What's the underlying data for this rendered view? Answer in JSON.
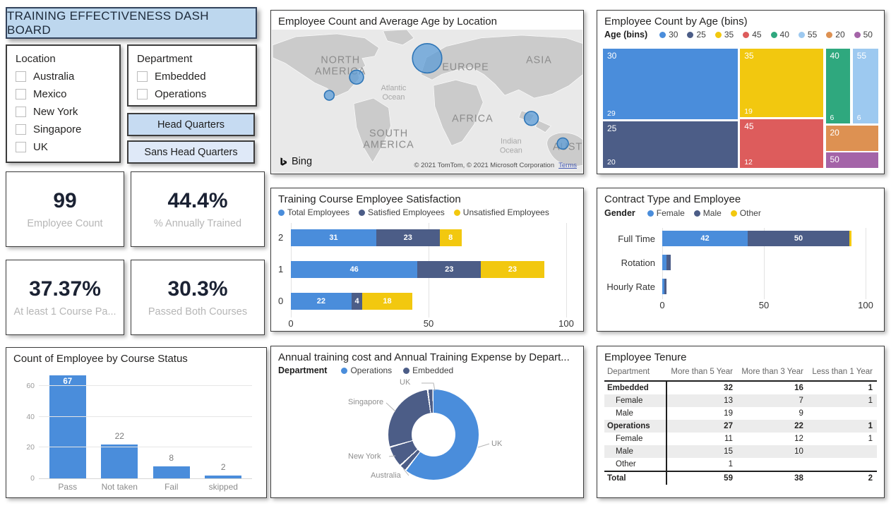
{
  "header": {
    "title": "TRAINING EFFECTIVENESS DASH BOARD"
  },
  "colors": {
    "blue": "#4A8DDB",
    "navy": "#4C5D87",
    "yellow": "#F2C80F",
    "red": "#DD5C5C",
    "green": "#2FA87E",
    "light_blue": "#9DC9F0",
    "orange": "#DD9152",
    "purple": "#A464A8",
    "header_bg": "#BDD7EE"
  },
  "filters": {
    "location": {
      "label": "Location",
      "options": [
        "Australia",
        "Mexico",
        "New York",
        "Singapore",
        "UK"
      ]
    },
    "department": {
      "label": "Department",
      "options": [
        "Embedded",
        "Operations"
      ]
    },
    "buttons": [
      {
        "label": "Head Quarters"
      },
      {
        "label": "Sans Head Quarters"
      }
    ]
  },
  "kpis": [
    {
      "value": "99",
      "label": "Employee Count"
    },
    {
      "value": "44.4%",
      "label": "% Annually Trained"
    },
    {
      "value": "37.37%",
      "label": "At least 1 Course Pa..."
    },
    {
      "value": "30.3%",
      "label": "Passed Both Courses"
    }
  ],
  "chart_data": [
    {
      "type": "map",
      "title": "Employee Count and Average Age by Location",
      "region_labels": [
        {
          "lines": [
            "NORTH",
            "AMERICA"
          ],
          "x": 97,
          "y": 48,
          "cls": "land"
        },
        {
          "lines": [
            "EUROPE"
          ],
          "x": 276,
          "y": 58,
          "cls": "land"
        },
        {
          "lines": [
            "ASIA"
          ],
          "x": 381,
          "y": 48,
          "cls": "land"
        },
        {
          "lines": [
            "Atlantic",
            "Ocean"
          ],
          "x": 173,
          "y": 87,
          "cls": "ocean"
        },
        {
          "lines": [
            "AFRICA"
          ],
          "x": 286,
          "y": 132,
          "cls": "land"
        },
        {
          "lines": [
            "SOUTH",
            "AMERICA"
          ],
          "x": 166,
          "y": 153,
          "cls": "land"
        },
        {
          "lines": [
            "Indian",
            "Ocean"
          ],
          "x": 341,
          "y": 163,
          "cls": "ocean"
        },
        {
          "lines": [
            "AUST"
          ],
          "x": 422,
          "y": 172,
          "cls": "land"
        }
      ],
      "bubbles": [
        {
          "x": 221,
          "y": 41,
          "r": 21
        },
        {
          "x": 120,
          "y": 68,
          "r": 10
        },
        {
          "x": 81,
          "y": 94,
          "r": 7
        },
        {
          "x": 370,
          "y": 127,
          "r": 10
        },
        {
          "x": 415,
          "y": 163,
          "r": 8
        }
      ],
      "logo": "Bing",
      "attribution": "© 2021 TomTom, © 2021 Microsoft Corporation",
      "terms": "Terms"
    },
    {
      "type": "treemap",
      "title": "Employee Count by Age (bins)",
      "legend_title": "Age (bins)",
      "items": [
        {
          "bin": "30",
          "value": 29,
          "color": "#4A8DDB"
        },
        {
          "bin": "25",
          "value": 20,
          "color": "#4C5D87"
        },
        {
          "bin": "35",
          "value": 19,
          "color": "#F2C80F"
        },
        {
          "bin": "45",
          "value": 12,
          "color": "#DD5C5C"
        },
        {
          "bin": "40",
          "value": 6,
          "color": "#2FA87E"
        },
        {
          "bin": "55",
          "value": 6,
          "color": "#9DC9F0"
        },
        {
          "bin": "20",
          "value": null,
          "color": "#DD9152"
        },
        {
          "bin": "50",
          "value": null,
          "color": "#A464A8"
        }
      ]
    },
    {
      "type": "bar",
      "orientation": "horizontal",
      "stacked": true,
      "title": "Training Course Employee Satisfaction",
      "categories": [
        "2",
        "1",
        "0"
      ],
      "series": [
        {
          "name": "Total Employees",
          "color": "#4A8DDB",
          "values": [
            31,
            46,
            22
          ]
        },
        {
          "name": "Satisfied Employees",
          "color": "#4C5D87",
          "values": [
            23,
            23,
            4
          ]
        },
        {
          "name": "Unsatisfied Employees",
          "color": "#F2C80F",
          "values": [
            8,
            23,
            18
          ]
        }
      ],
      "xlim": [
        0,
        100
      ],
      "xticks": [
        0,
        50,
        100
      ]
    },
    {
      "type": "bar",
      "orientation": "horizontal",
      "stacked": true,
      "title": "Contract Type and Employee",
      "legend_title": "Gender",
      "categories": [
        "Full Time",
        "Rotation",
        "Hourly Rate"
      ],
      "series": [
        {
          "name": "Female",
          "color": "#4A8DDB",
          "values": [
            42,
            2,
            1
          ]
        },
        {
          "name": "Male",
          "color": "#4C5D87",
          "values": [
            50,
            2,
            1
          ]
        },
        {
          "name": "Other",
          "color": "#F2C80F",
          "values": [
            1,
            0,
            0
          ]
        }
      ],
      "xlim": [
        0,
        100
      ],
      "xticks": [
        0,
        50,
        100
      ]
    },
    {
      "type": "bar",
      "title": "Count of Employee by Course Status",
      "categories": [
        "Pass",
        "Not taken",
        "Fail",
        "skipped"
      ],
      "values": [
        67,
        22,
        8,
        2
      ],
      "ylim": [
        0,
        68
      ],
      "yticks": [
        0,
        20,
        40,
        60
      ]
    },
    {
      "type": "pie",
      "title": "Annual training cost and Annual Training Expense by Depart...",
      "legend_title": "Department",
      "legend": [
        {
          "name": "Operations",
          "color": "#4A8DDB"
        },
        {
          "name": "Embedded",
          "color": "#4C5D87"
        }
      ],
      "segments": [
        {
          "label": "UK",
          "department": "Operations",
          "color": "#4A8DDB",
          "start": 0,
          "end": 217
        },
        {
          "label": "Australia",
          "department": "Embedded",
          "color": "#4C5D87",
          "start": 219,
          "end": 226
        },
        {
          "label": "New York",
          "department": "Embedded",
          "color": "#4C5D87",
          "start": 228,
          "end": 253
        },
        {
          "label": "Singapore",
          "department": "Embedded",
          "color": "#4C5D87",
          "start": 255,
          "end": 351.5
        },
        {
          "label": "UK",
          "department": "Embedded",
          "color": "#4C5D87",
          "start": 353.5,
          "end": 358.5
        }
      ]
    },
    {
      "type": "table",
      "title": "Employee Tenure",
      "columns": [
        "Department",
        "More than 5 Year",
        "More than 3 Year",
        "Less than 1 Year"
      ],
      "rows": [
        {
          "label": "Embedded",
          "bold": true,
          "indent": false,
          "total": false,
          "values": [
            "32",
            "16",
            "1"
          ]
        },
        {
          "label": "Female",
          "bold": false,
          "indent": true,
          "total": false,
          "values": [
            "13",
            "7",
            "1"
          ]
        },
        {
          "label": "Male",
          "bold": false,
          "indent": true,
          "total": false,
          "values": [
            "19",
            "9",
            ""
          ]
        },
        {
          "label": "Operations",
          "bold": true,
          "indent": false,
          "total": false,
          "values": [
            "27",
            "22",
            "1"
          ]
        },
        {
          "label": "Female",
          "bold": false,
          "indent": true,
          "total": false,
          "values": [
            "11",
            "12",
            "1"
          ]
        },
        {
          "label": "Male",
          "bold": false,
          "indent": true,
          "total": false,
          "values": [
            "15",
            "10",
            ""
          ]
        },
        {
          "label": "Other",
          "bold": false,
          "indent": true,
          "total": false,
          "values": [
            "1",
            "",
            ""
          ]
        },
        {
          "label": "Total",
          "bold": true,
          "indent": false,
          "total": true,
          "values": [
            "59",
            "38",
            "2"
          ]
        }
      ]
    }
  ]
}
